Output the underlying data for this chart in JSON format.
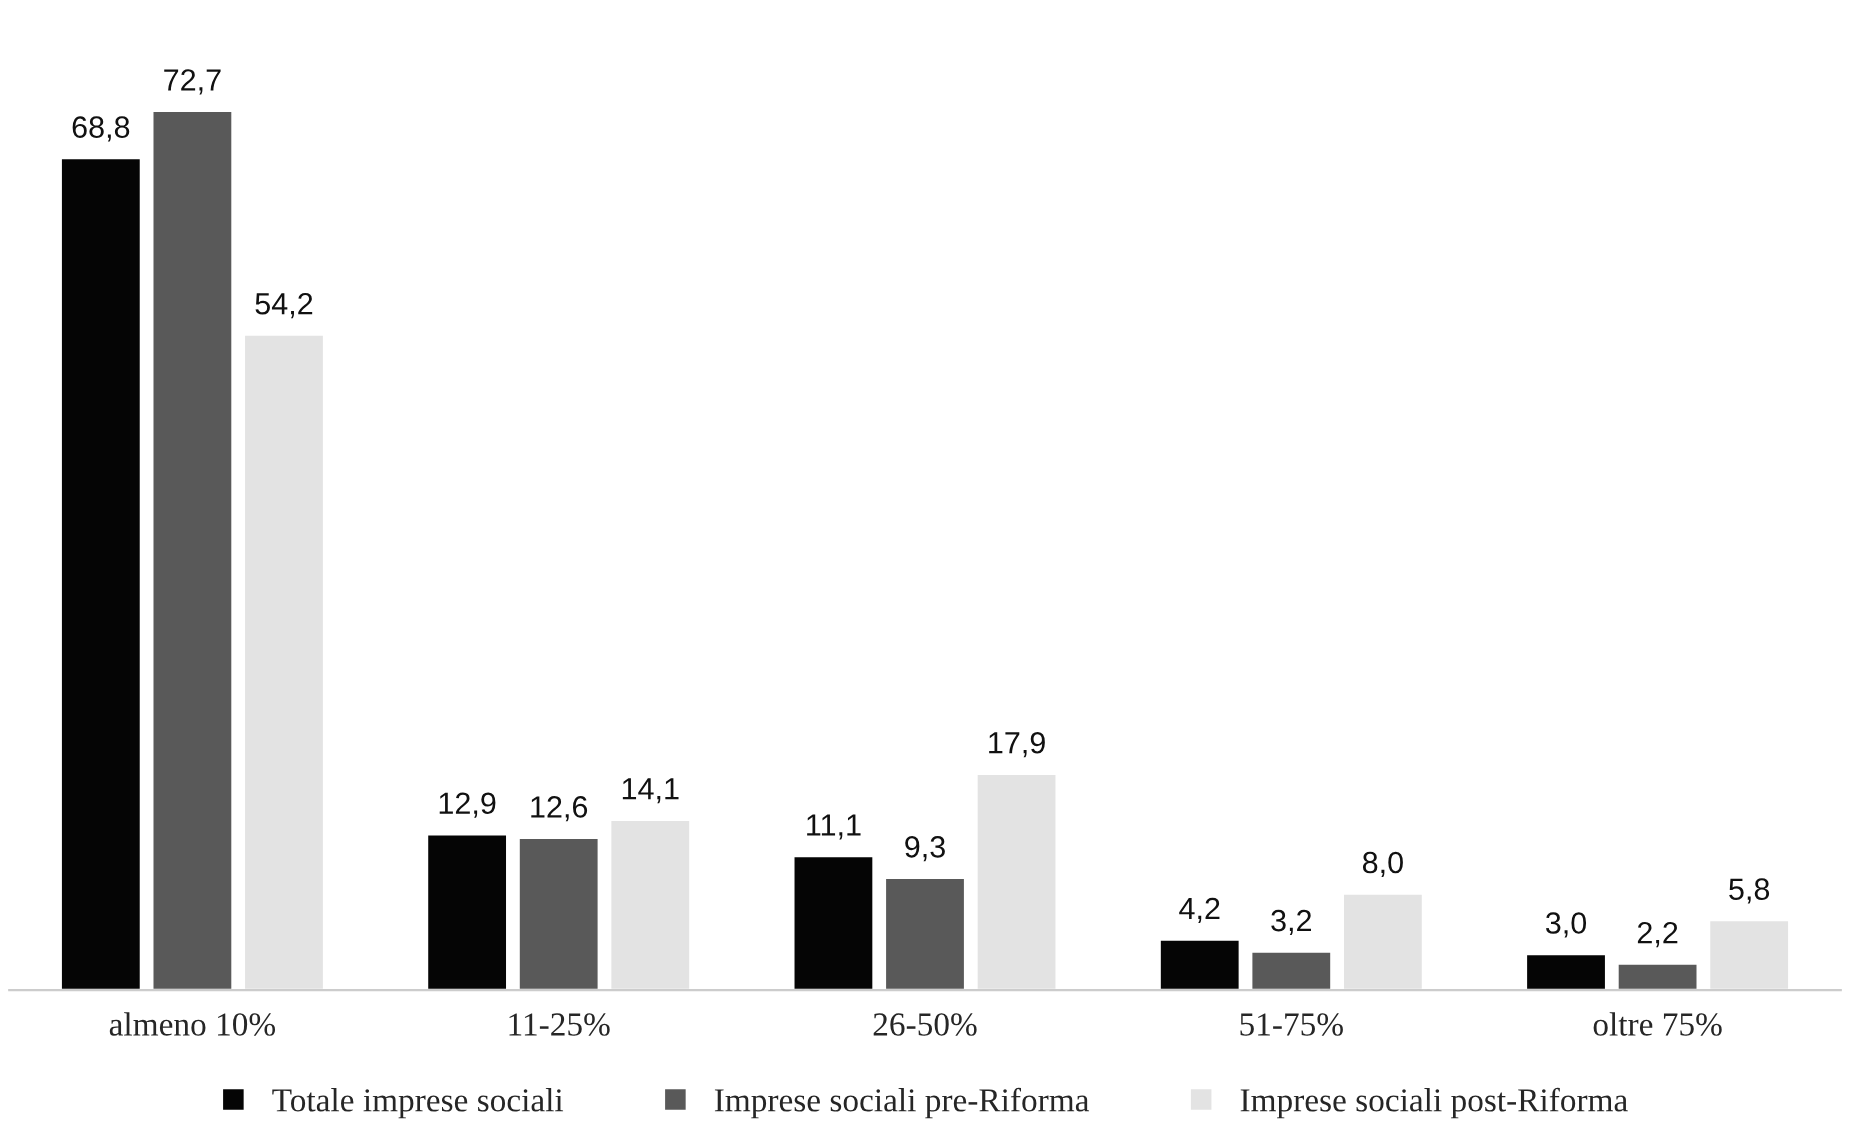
{
  "chart_data": {
    "type": "bar",
    "categories": [
      "almeno 10%",
      "11-25%",
      "26-50%",
      "51-75%",
      "oltre 75%"
    ],
    "series": [
      {
        "name": "Totale imprese sociali",
        "color": "#050505",
        "values": [
          68.8,
          12.9,
          11.1,
          4.2,
          3.0
        ],
        "value_labels": [
          "68,8",
          "12,9",
          "11,1",
          "4,2",
          "3,0"
        ]
      },
      {
        "name": "Imprese sociali pre-Riforma",
        "color": "#595959",
        "values": [
          72.7,
          12.6,
          9.3,
          3.2,
          2.2
        ],
        "value_labels": [
          "72,7",
          "12,6",
          "9,3",
          "3,2",
          "2,2"
        ]
      },
      {
        "name": "Imprese sociali post-Riforma",
        "color": "#e3e3e3",
        "values": [
          54.2,
          14.1,
          17.9,
          8.0,
          5.8
        ],
        "value_labels": [
          "54,2",
          "14,1",
          "17,9",
          "8,0",
          "5,8"
        ]
      }
    ],
    "legend": "bottom",
    "grid": false
  }
}
